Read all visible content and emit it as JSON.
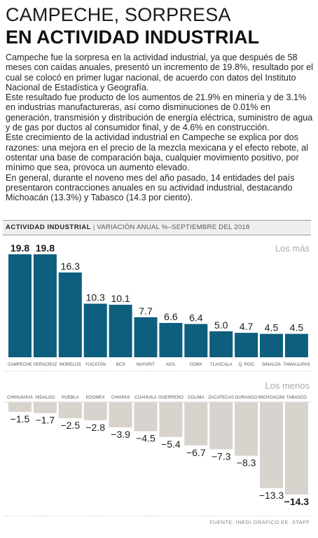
{
  "headline": {
    "line1": "CAMPECHE, SORPRESA",
    "line2": "EN ACTIVIDAD INDUSTRIAL"
  },
  "paragraphs": [
    "Campeche fue la sorpresa en la actividad industrial, ya que después de 58 meses con caídas anuales, presentó un incremento de 19.8%, resultado por el cual se colocó en primer lugar nacional, de acuerdo con datos del Instituto Nacional de Estadística y Geografía.",
    "Este resultado fue producto de los aumentos de 21.9% en minería y de 3.1% en industrias manufactureras, así como disminuciones de 0.01% en generación, transmisión y distribución de energía eléctrica, suministro de agua y de gas por ductos al consumidor final, y de 4.6% en construcción.",
    "Este crecimiento de la actividad industrial en Campeche se explica por dos razones: una mejora en el precio de la mezcla mexicana y el efecto rebote, al ostentar una base de comparación baja, cualquier movimiento positivo, por mínimo que sea, provoca un aumento elevado.",
    "En general, durante el noveno mes del año pasado, 14 entidades del país presentaron contracciones anuales en su actividad industrial, destacando Michoacán (13.3%) y Tabasco (14.3 por ciento)."
  ],
  "chart_header": {
    "label": "ACTIVIDAD INDUSTRIAL",
    "separator": "|",
    "subtitle": "VARIACIÓN ANUAL %–SEPTIEMBRE DEL 2018"
  },
  "source": "FUENTE: INEGI  GRÁFICO EE: STAFF",
  "colors": {
    "positive_bar": "#0e5e7e",
    "negative_bar": "#d9d3cd",
    "section_label": "#a9a9a9"
  },
  "chart_data": [
    {
      "type": "bar",
      "section_label": "Los más",
      "categories": [
        "CAMPECHE",
        "VERACRUZ",
        "MORELOS",
        "YUCATÁN",
        "BCS",
        "NAYARIT",
        "AGS.",
        "CDMX",
        "TLAXCALA",
        "Q. ROO",
        "SINALOA",
        "TAMAULIPAS"
      ],
      "values": [
        19.8,
        19.8,
        16.3,
        10.3,
        10.1,
        7.7,
        6.6,
        6.4,
        5.0,
        4.7,
        4.5,
        4.5
      ],
      "value_labels": [
        "19.8",
        "19.8",
        "16.3",
        "10.3",
        "10.1",
        "7.7",
        "6.6",
        "6.4",
        "5.0",
        "4.7",
        "4.5",
        "4.5"
      ],
      "ylim": [
        0,
        19.8
      ]
    },
    {
      "type": "bar",
      "section_label": "Los menos",
      "categories": [
        "CHIHUAHUA",
        "HIDALGO",
        "PUEBLA",
        "EDOMEX",
        "CHIAPAS",
        "COAHUILA",
        "GUERRERO",
        "COLIMA",
        "ZACATECAS",
        "DURANGO",
        "MICHOACÁN",
        "TABASCO"
      ],
      "values": [
        -1.5,
        -1.7,
        -2.5,
        -2.8,
        -3.9,
        -4.5,
        -5.4,
        -6.7,
        -7.3,
        -8.3,
        -13.3,
        -14.3
      ],
      "value_labels": [
        "−1.5",
        "−1.7",
        "−2.5",
        "−2.8",
        "−3.9",
        "−4.5",
        "−5.4",
        "−6.7",
        "−7.3",
        "−8.3",
        "−13.3",
        "−14.3"
      ],
      "ylim": [
        -14.3,
        0
      ]
    }
  ]
}
